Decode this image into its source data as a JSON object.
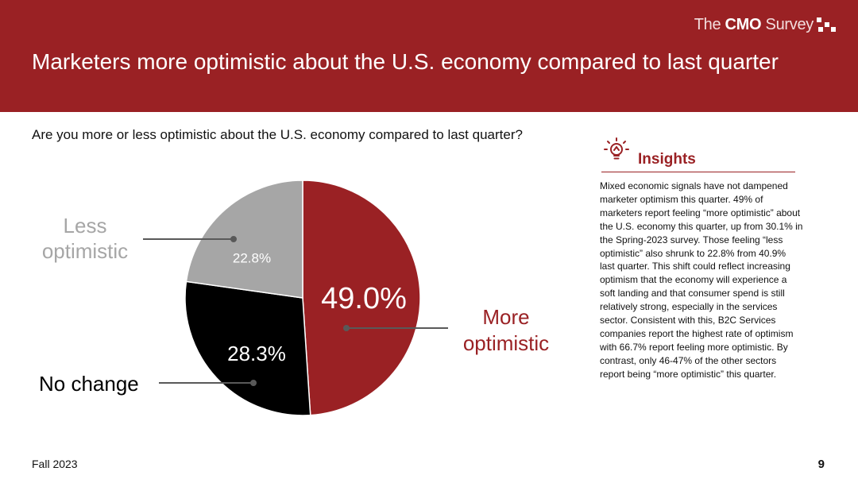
{
  "brand": {
    "prefix": "The ",
    "bold": "CMO",
    "suffix": " Survey"
  },
  "slide_title": "Marketers more optimistic about the U.S. economy compared to last quarter",
  "question": "Are you more or less optimistic about the U.S. economy compared to last quarter?",
  "chart_data": {
    "type": "pie",
    "slices": [
      {
        "label": "More optimistic",
        "value": 49.0,
        "value_label": "49.0%",
        "color": "#9a2124"
      },
      {
        "label": "No change",
        "value": 28.3,
        "value_label": "28.3%",
        "color": "#000000"
      },
      {
        "label": "Less optimistic",
        "value": 22.8,
        "value_label": "22.8%",
        "color": "#a6a6a6"
      }
    ],
    "start": "12 o'clock",
    "direction": "clockwise"
  },
  "labels": {
    "less_line1": "Less",
    "less_line2": "optimistic",
    "no_change": "No change",
    "more_line1": "More",
    "more_line2": "optimistic"
  },
  "insights": {
    "title": "Insights",
    "body": "Mixed economic signals have not dampened marketer optimism this quarter. 49% of marketers report feeling “more optimistic” about the U.S. economy this quarter, up from 30.1% in the Spring-2023 survey. Those feeling “less optimistic” also shrunk to 22.8% from 40.9% last quarter. This shift could reflect increasing optimism that the economy will experience a soft landing and that consumer spend is still relatively strong, especially in the services sector. Consistent with this, B2C Services companies report the highest rate of optimism with 66.7% report feeling more optimistic. By contrast, only 46-47% of the other sectors report being “more optimistic” this quarter."
  },
  "footer": "Fall 2023",
  "page_number": "9"
}
